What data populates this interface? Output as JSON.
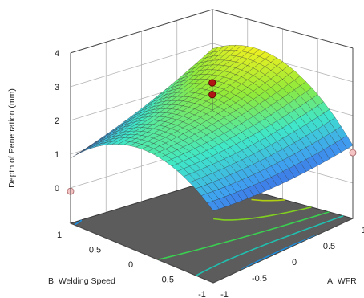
{
  "chart_data": {
    "type": "surface3d",
    "title": "",
    "zlabel": "Depth of Penetration (mm)",
    "xlabel": "A: WFR",
    "ylabel": "B: Welding Speed",
    "xlim": [
      -1,
      1
    ],
    "ylim": [
      -1,
      1
    ],
    "zlim": [
      0,
      4
    ],
    "x_ticks": [
      "-1",
      "-0.5",
      "0",
      "0.5",
      "1"
    ],
    "y_ticks": [
      "-1",
      "-0.5",
      "0",
      "0.5",
      "1"
    ],
    "z_ticks": [
      "0",
      "1",
      "2",
      "3",
      "4"
    ],
    "grid": true,
    "surface": {
      "model": "quadratic response surface",
      "colormap": [
        "#3b3bd6",
        "#3fa0f0",
        "#3fe8c8",
        "#8fea3a",
        "#f0f020"
      ],
      "x_range": [
        -1,
        1
      ],
      "y_range": [
        -1,
        1
      ]
    },
    "contour_colors": [
      "#1b8fe0",
      "#20c0b0",
      "#3ad050",
      "#80d020",
      "#b0d010"
    ],
    "floor_color": "#5c5c5c",
    "design_points": [
      {
        "x": 0,
        "y": 0,
        "z": 3.2,
        "above_surface": true
      },
      {
        "x": 0,
        "y": 0,
        "z": 2.85,
        "above_surface": true
      },
      {
        "x": 1,
        "y": -1,
        "z": 0.9,
        "above_surface": false
      },
      {
        "x": -1,
        "y": 1,
        "z": -0.1,
        "above_surface": false
      }
    ]
  }
}
